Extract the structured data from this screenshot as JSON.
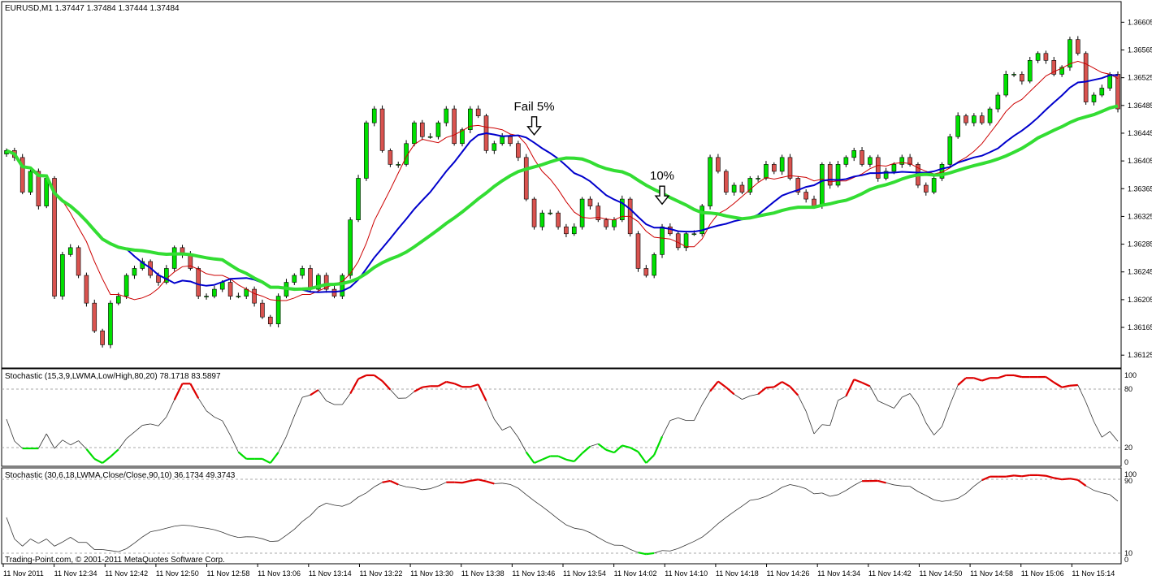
{
  "main_panel": {
    "header": "EURUSD,M1  1.37447 1.37484 1.37444 1.37484",
    "price_labels": [
      "1.36605",
      "1.36565",
      "1.36525",
      "1.36485",
      "1.36445",
      "1.36405",
      "1.36365",
      "1.36325",
      "1.36285",
      "1.36245",
      "1.36205",
      "1.36165",
      "1.36125"
    ],
    "price_range": [
      1.3611,
      1.3663
    ],
    "annotations": [
      {
        "label": "Fail 5%",
        "arrow": "down",
        "bar_index": 66
      },
      {
        "label": "10%",
        "arrow": "down",
        "bar_index": 82
      }
    ],
    "colors": {
      "bull": "#00e000",
      "bear": "#d9534f",
      "ma_fast": "#cc0000",
      "ma_mid": "#0000cc",
      "ma_slow": "#33dd33"
    }
  },
  "stoch1": {
    "header": "Stochastic (15,3,9,LWMA,Low/High,80,20) 78.1718 83.5897",
    "levels": [
      "100",
      "80",
      "20",
      "0"
    ]
  },
  "stoch2": {
    "header": "Stochastic (30,6,18,LWMA,Close/Close,90,10) 36.1734 49.3743",
    "levels": [
      "100",
      "90",
      "10",
      "0"
    ]
  },
  "copyright": "Trading-Point.com, © 2001-2011 MetaQuotes Software Corp.",
  "time_labels": [
    "11 Nov 2011",
    "11 Nov 12:34",
    "11 Nov 12:42",
    "11 Nov 12:50",
    "11 Nov 12:58",
    "11 Nov 13:06",
    "11 Nov 13:14",
    "11 Nov 13:22",
    "11 Nov 13:30",
    "11 Nov 13:38",
    "11 Nov 13:46",
    "11 Nov 13:54",
    "11 Nov 14:02",
    "11 Nov 14:10",
    "11 Nov 14:18",
    "11 Nov 14:26",
    "11 Nov 14:34",
    "11 Nov 14:42",
    "11 Nov 14:50",
    "11 Nov 14:58",
    "11 Nov 15:06",
    "11 Nov 15:14"
  ],
  "chart_data": {
    "type": "candlestick",
    "symbol": "EURUSD",
    "timeframe": "M1",
    "close_path": [
      1.3642,
      1.3641,
      1.3636,
      1.3639,
      1.3634,
      1.3638,
      1.3621,
      1.3627,
      1.3628,
      1.3624,
      1.362,
      1.3616,
      1.3614,
      1.362,
      1.3621,
      1.3624,
      1.3625,
      1.3626,
      1.3624,
      1.3623,
      1.3625,
      1.3628,
      1.3627,
      1.3625,
      1.3621,
      1.3621,
      1.3622,
      1.3623,
      1.3621,
      1.3621,
      1.3622,
      1.362,
      1.3618,
      1.3617,
      1.3621,
      1.3623,
      1.3624,
      1.3625,
      1.3622,
      1.3624,
      1.3622,
      1.3621,
      1.3624,
      1.3632,
      1.3638,
      1.3646,
      1.3648,
      1.3642,
      1.364,
      1.364,
      1.3643,
      1.3646,
      1.3644,
      1.3644,
      1.3646,
      1.3648,
      1.3643,
      1.3645,
      1.3648,
      1.3647,
      1.3642,
      1.3643,
      1.3644,
      1.3643,
      1.3641,
      1.3635,
      1.3631,
      1.3633,
      1.3633,
      1.3631,
      1.363,
      1.3631,
      1.3635,
      1.3634,
      1.3632,
      1.3631,
      1.3632,
      1.3635,
      1.363,
      1.3625,
      1.3624,
      1.3627,
      1.3631,
      1.363,
      1.3628,
      1.363,
      1.363,
      1.3634,
      1.3641,
      1.3639,
      1.3636,
      1.3637,
      1.3636,
      1.3638,
      1.3638,
      1.364,
      1.3639,
      1.3641,
      1.3638,
      1.3636,
      1.3635,
      1.3634,
      1.364,
      1.3637,
      1.364,
      1.3641,
      1.3642,
      1.364,
      1.3641,
      1.3638,
      1.3639,
      1.364,
      1.3641,
      1.364,
      1.3637,
      1.3636,
      1.3638,
      1.364,
      1.3644,
      1.3647,
      1.3646,
      1.3647,
      1.3646,
      1.3648,
      1.365,
      1.3653,
      1.3653,
      1.3652,
      1.3655,
      1.3656,
      1.3655,
      1.3653,
      1.3654,
      1.3658,
      1.3656,
      1.3649,
      1.365,
      1.3651,
      1.3653,
      1.3648
    ]
  }
}
